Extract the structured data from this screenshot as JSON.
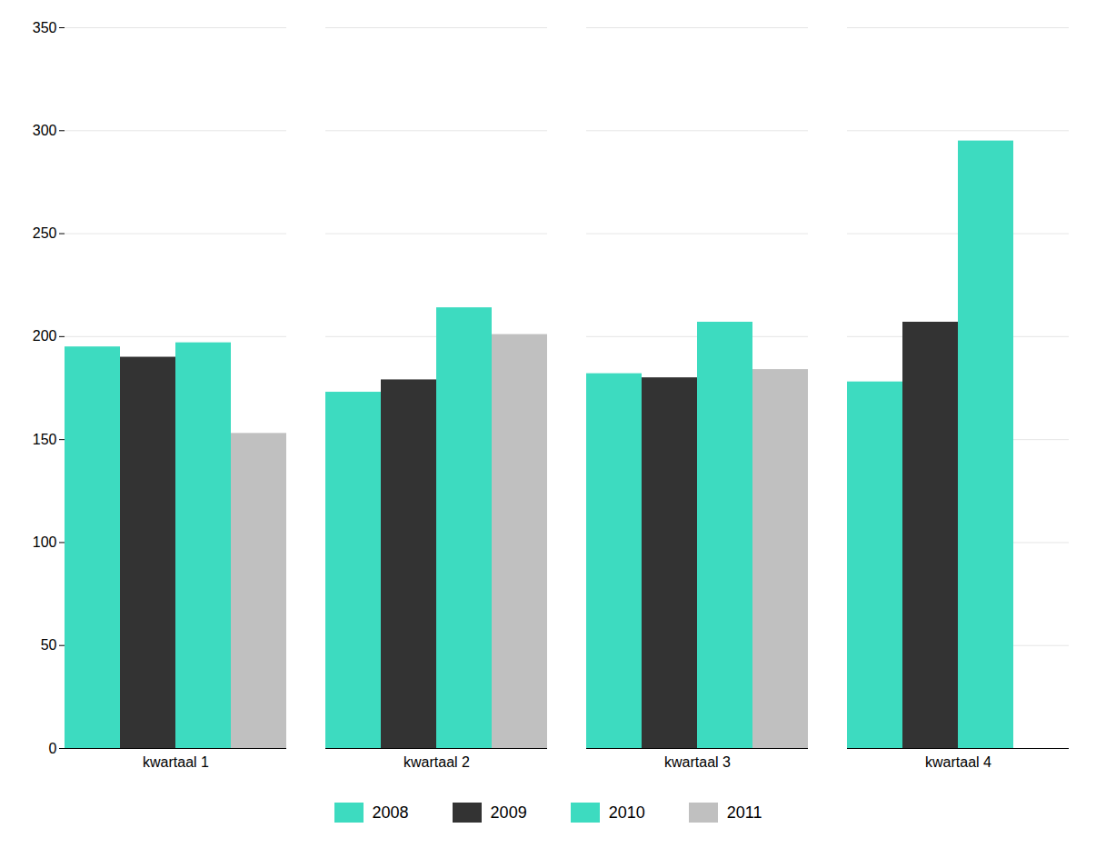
{
  "chart_data": {
    "type": "bar",
    "categories": [
      "kwartaal 1",
      "kwartaal 2",
      "kwartaal 3",
      "kwartaal 4"
    ],
    "series": [
      {
        "name": "2008",
        "color": "#3DDBC0",
        "values": [
          195,
          173,
          182,
          178
        ]
      },
      {
        "name": "2009",
        "color": "#333333",
        "values": [
          190,
          179,
          180,
          207
        ]
      },
      {
        "name": "2010",
        "color": "#3DDBC0",
        "values": [
          197,
          214,
          207,
          295
        ]
      },
      {
        "name": "2011",
        "color": "#C0C0C0",
        "values": [
          153,
          201,
          184,
          null
        ]
      }
    ],
    "ylim": [
      0,
      350
    ],
    "yticks": [
      0,
      50,
      100,
      150,
      200,
      250,
      300,
      350
    ],
    "grid": true,
    "legend": "bottom"
  }
}
